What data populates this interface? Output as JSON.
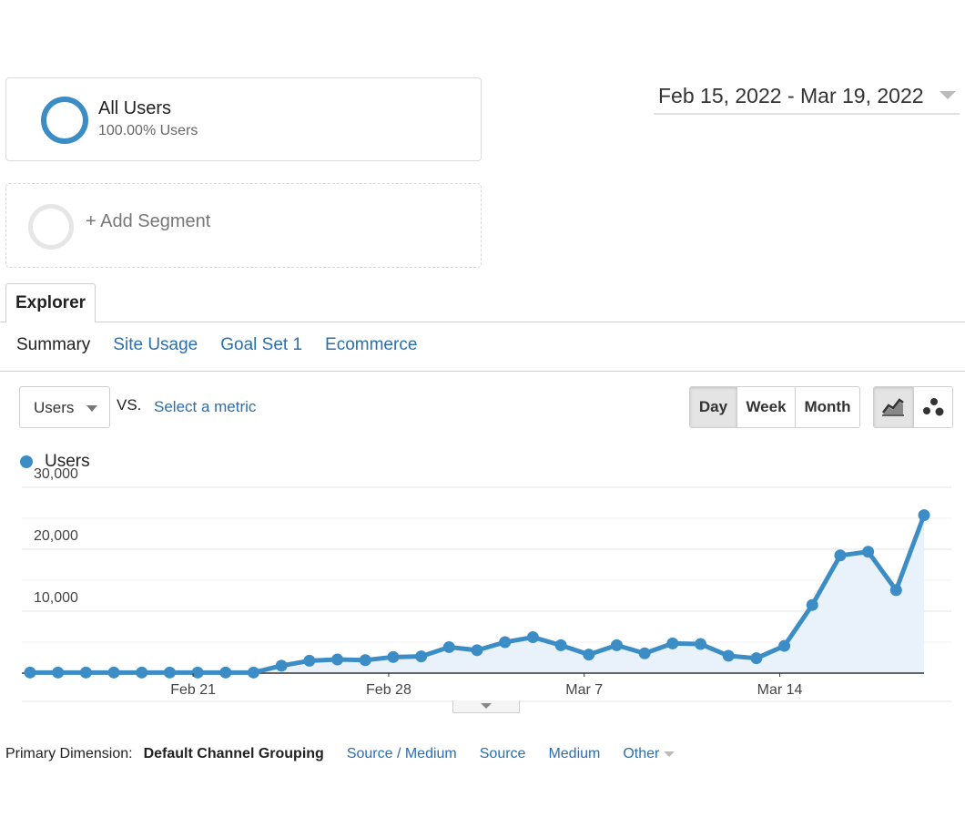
{
  "segments": {
    "active": {
      "name": "All Users",
      "subtitle": "100.00% Users"
    },
    "add_label": "+ Add Segment"
  },
  "date_range": "Feb 15, 2022 - Mar 19, 2022",
  "tabs": {
    "explorer": "Explorer",
    "subtabs": [
      {
        "label": "Summary",
        "active": true
      },
      {
        "label": "Site Usage",
        "active": false
      },
      {
        "label": "Goal Set 1",
        "active": false
      },
      {
        "label": "Ecommerce",
        "active": false
      }
    ]
  },
  "metric": {
    "selected": "Users",
    "vs": "VS.",
    "select_metric": "Select a metric"
  },
  "periods": [
    {
      "label": "Day",
      "active": true
    },
    {
      "label": "Week",
      "active": false
    },
    {
      "label": "Month",
      "active": false
    }
  ],
  "viz": {
    "line_icon": "line-chart-icon",
    "motion_icon": "motion-chart-icon"
  },
  "colors": {
    "series": "#3c8dc5",
    "fill": "#e9f2fb",
    "link": "#2a6fb0"
  },
  "chart_data": {
    "type": "area",
    "x": [
      "Feb 15",
      "Feb 16",
      "Feb 17",
      "Feb 18",
      "Feb 19",
      "Feb 20",
      "Feb 21",
      "Feb 22",
      "Feb 23",
      "Feb 24",
      "Feb 25",
      "Feb 26",
      "Feb 27",
      "Feb 28",
      "Mar 1",
      "Mar 2",
      "Mar 3",
      "Mar 4",
      "Mar 5",
      "Mar 6",
      "Mar 7",
      "Mar 8",
      "Mar 9",
      "Mar 10",
      "Mar 11",
      "Mar 12",
      "Mar 13",
      "Mar 14",
      "Mar 15",
      "Mar 16",
      "Mar 17",
      "Mar 18",
      "Mar 19"
    ],
    "series": [
      {
        "name": "Users",
        "values": [
          100,
          100,
          100,
          100,
          100,
          100,
          100,
          100,
          100,
          1200,
          2000,
          2200,
          2100,
          2600,
          2700,
          4200,
          3700,
          5000,
          5800,
          4500,
          3000,
          4500,
          3200,
          4800,
          4700,
          2800,
          2400,
          4400,
          11000,
          19000,
          19600,
          13400,
          25500
        ]
      }
    ],
    "x_tick_labels": [
      "Feb 21",
      "Feb 28",
      "Mar 7",
      "Mar 14"
    ],
    "y_tick_labels": [
      "10,000",
      "20,000",
      "30,000"
    ],
    "ylim": [
      0,
      30000
    ],
    "legend": "top-left",
    "grid": true
  },
  "primary_dimension": {
    "label": "Primary Dimension:",
    "current": "Default Channel Grouping",
    "links": [
      "Source / Medium",
      "Source",
      "Medium"
    ],
    "other": "Other"
  }
}
